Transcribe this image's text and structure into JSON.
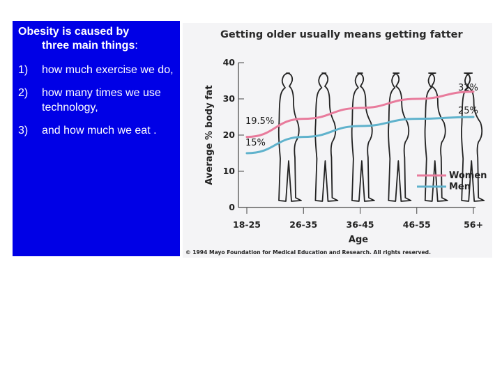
{
  "slide": {
    "heading_line1": "Obesity is caused by",
    "heading_line2": "three main things",
    "heading_colon": ":",
    "items": [
      {
        "num": "1)",
        "text": "how much exercise we do,"
      },
      {
        "num": "2)",
        "text": "how many times we use technology,"
      },
      {
        "num": "3)",
        "text": "and how much we eat ."
      }
    ]
  },
  "colors": {
    "panel_blue": "#0000e6",
    "women": "#e87b9c",
    "men": "#5fb2cc",
    "axis": "#444444",
    "silhouette": "#222222"
  },
  "chart_data": {
    "type": "line",
    "title": "Getting older usually means getting fatter",
    "xlabel": "Age",
    "ylabel": "Average % body fat",
    "categories": [
      "18-25",
      "26-35",
      "36-45",
      "46-55",
      "56+"
    ],
    "ylim": [
      0,
      40
    ],
    "yticks": [
      0,
      10,
      20,
      30,
      40
    ],
    "grid": false,
    "series": [
      {
        "name": "Women",
        "values": [
          19.5,
          24.5,
          27.5,
          30,
          32
        ]
      },
      {
        "name": "Men",
        "values": [
          15,
          19.5,
          22.5,
          24.5,
          25
        ]
      }
    ],
    "annotations": [
      "19.5%",
      "15%",
      "32%",
      "25%"
    ],
    "legend": [
      "Women",
      "Men"
    ],
    "legend_position": "bottom-right",
    "silhouettes": 6,
    "copyright": "© 1994 Mayo Foundation for Medical Education and Research. All rights reserved."
  }
}
